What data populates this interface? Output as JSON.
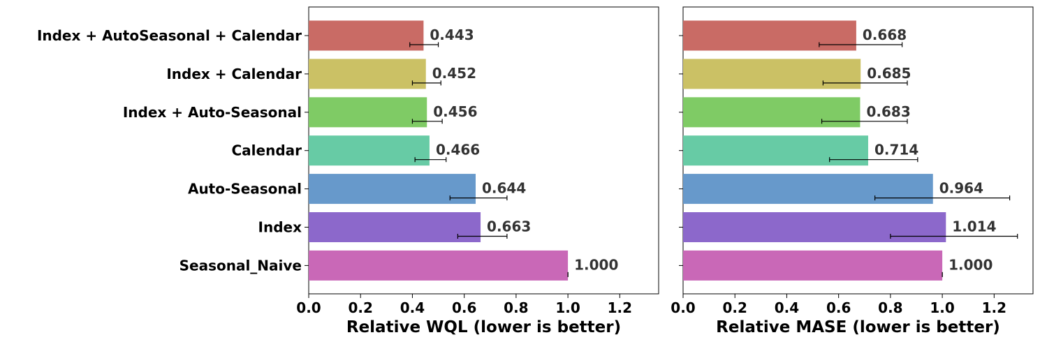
{
  "chart_data": {
    "type": "bar",
    "orientation": "horizontal",
    "categories": [
      "Index + AutoSeasonal + Calendar",
      "Index + Calendar",
      "Index + Auto-Seasonal",
      "Calendar",
      "Auto-Seasonal",
      "Index",
      "Seasonal_Naive"
    ],
    "colors": [
      "#c96b65",
      "#cbc165",
      "#7fcb65",
      "#67cba5",
      "#6799cb",
      "#8c68cb",
      "#c968b7"
    ],
    "xlim": [
      0,
      1.35
    ],
    "xticks": [
      "0.0",
      "0.2",
      "0.4",
      "0.6",
      "0.8",
      "1.0",
      "1.2"
    ],
    "xtick_values": [
      0,
      0.2,
      0.4,
      0.6,
      0.8,
      1.0,
      1.2
    ],
    "panels": [
      {
        "xlabel": "Relative WQL (lower is better)",
        "values": [
          0.443,
          0.452,
          0.456,
          0.466,
          0.644,
          0.663,
          1.0
        ],
        "labels": [
          "0.443",
          "0.452",
          "0.456",
          "0.466",
          "0.644",
          "0.663",
          "1.000"
        ],
        "err_low": [
          0.39,
          0.4,
          0.4,
          0.41,
          0.545,
          0.575,
          1.0
        ],
        "err_high": [
          0.5,
          0.51,
          0.515,
          0.53,
          0.765,
          0.765,
          1.0
        ]
      },
      {
        "xlabel": "Relative MASE (lower is better)",
        "values": [
          0.668,
          0.685,
          0.683,
          0.714,
          0.964,
          1.014,
          1.0
        ],
        "labels": [
          "0.668",
          "0.685",
          "0.683",
          "0.714",
          "0.964",
          "1.014",
          "1.000"
        ],
        "err_low": [
          0.525,
          0.54,
          0.535,
          0.565,
          0.74,
          0.8,
          1.0
        ],
        "err_high": [
          0.845,
          0.865,
          0.865,
          0.905,
          1.26,
          1.29,
          1.0
        ]
      }
    ]
  }
}
